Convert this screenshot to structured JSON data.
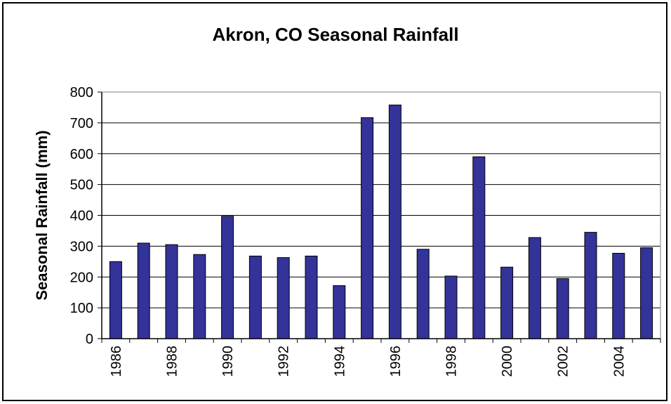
{
  "chart_data": {
    "type": "bar",
    "title": "Akron, CO Seasonal Rainfall",
    "xlabel": "",
    "ylabel": "Seasonal Rainfall (mm)",
    "ylim": [
      0,
      800
    ],
    "yticks": [
      0,
      100,
      200,
      300,
      400,
      500,
      600,
      700,
      800
    ],
    "categories": [
      "1986",
      "1987",
      "1988",
      "1989",
      "1990",
      "1991",
      "1992",
      "1993",
      "1994",
      "1995",
      "1996",
      "1997",
      "1998",
      "1999",
      "2000",
      "2001",
      "2002",
      "2003",
      "2004",
      "2005"
    ],
    "xtick_labels": [
      "1986",
      "1988",
      "1990",
      "1992",
      "1994",
      "1996",
      "1998",
      "2000",
      "2002",
      "2004"
    ],
    "values": [
      250,
      310,
      305,
      273,
      397,
      268,
      263,
      268,
      172,
      717,
      758,
      290,
      203,
      590,
      232,
      328,
      195,
      345,
      277,
      295
    ],
    "grid": "horizontal",
    "bar_color": "#333399",
    "bar_edge_color": "#000000"
  }
}
